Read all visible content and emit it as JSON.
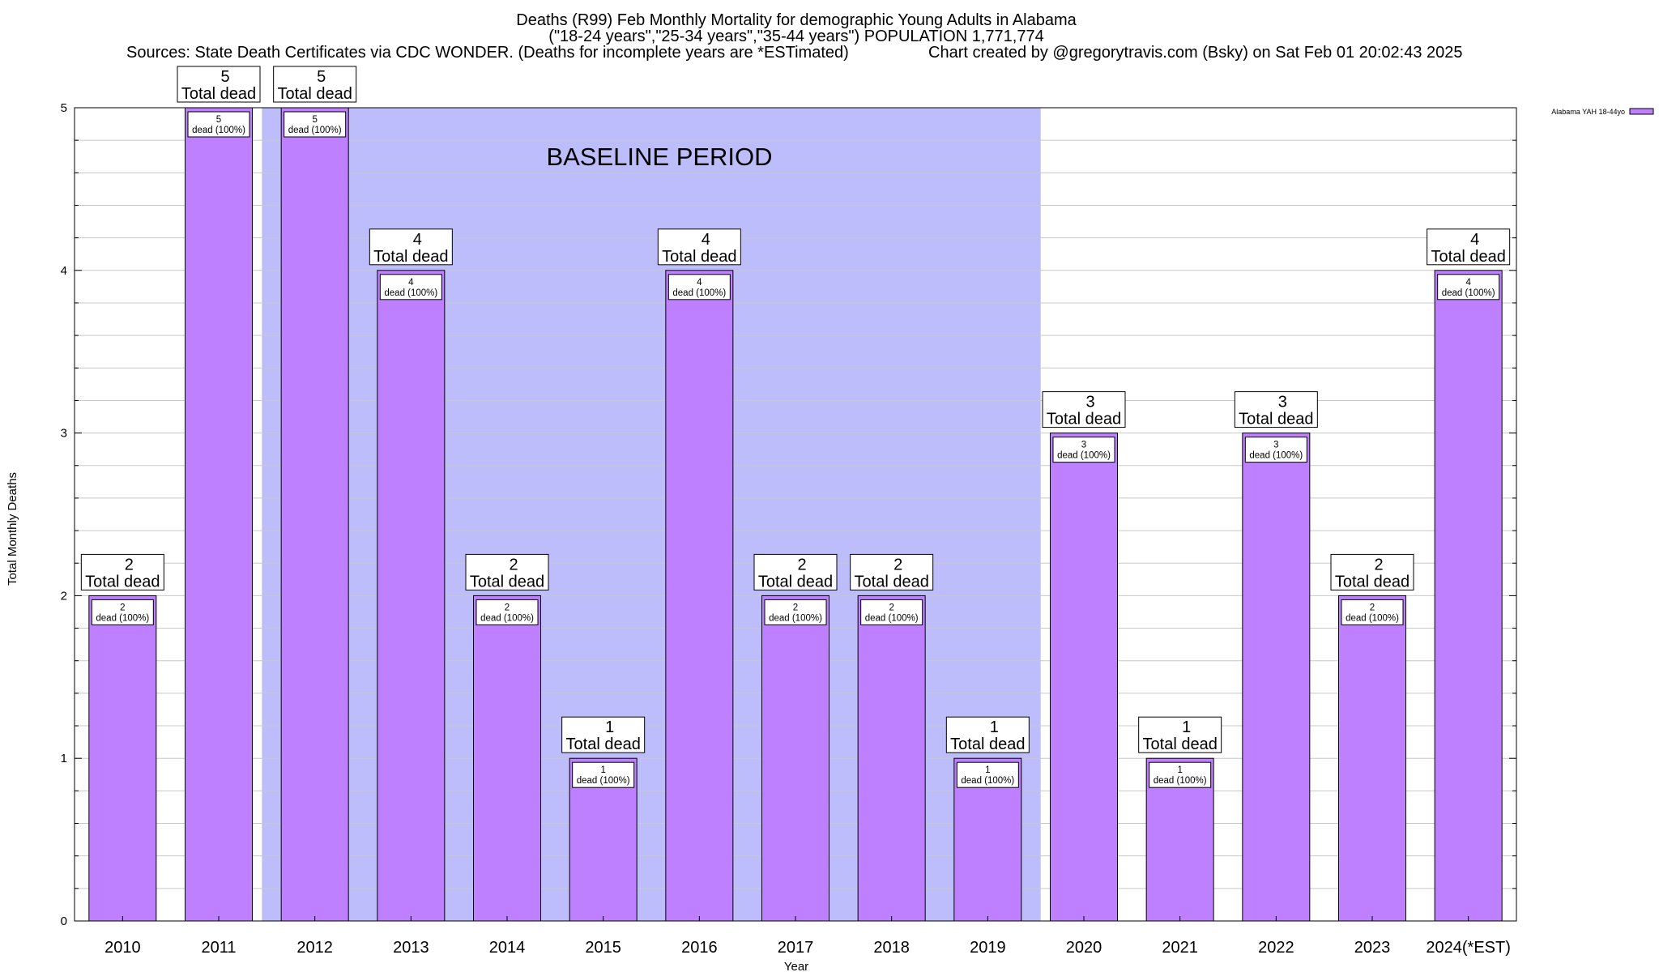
{
  "chart_data": {
    "type": "bar",
    "title_lines": [
      "Deaths (R99) Feb Monthly Mortality for demographic Young Adults in Alabama",
      "(\"18-24 years\",\"25-34 years\",\"35-44 years\") POPULATION 1,771,774",
      "Sources: State Death Certificates via CDC WONDER. (Deaths for incomplete years are *ESTimated)"
    ],
    "credit": "Chart created by @gregorytravis.com (Bsky) on Sat Feb 01 20:02:43 2025",
    "xlabel": "Year",
    "ylabel": "Total Monthly Deaths",
    "ylim": [
      0,
      5
    ],
    "yticks": [
      0,
      1,
      2,
      3,
      4,
      5
    ],
    "categories": [
      "2010",
      "2011",
      "2012",
      "2013",
      "2014",
      "2015",
      "2016",
      "2017",
      "2018",
      "2019",
      "2020",
      "2021",
      "2022",
      "2023",
      "2024(*EST)"
    ],
    "series": [
      {
        "name": "Alabama YAH 18-44yo",
        "color": "#bf80ff",
        "values": [
          2,
          5,
          5,
          4,
          2,
          1,
          4,
          2,
          2,
          1,
          3,
          1,
          3,
          2,
          4
        ]
      }
    ],
    "total_label": "Total dead",
    "inner_label": "dead (100%)",
    "baseline": {
      "label": "BASELINE PERIOD",
      "from": "2012",
      "to": "2019",
      "color": "#bdbdfc"
    },
    "grid": true,
    "legend_position": "top-right"
  }
}
